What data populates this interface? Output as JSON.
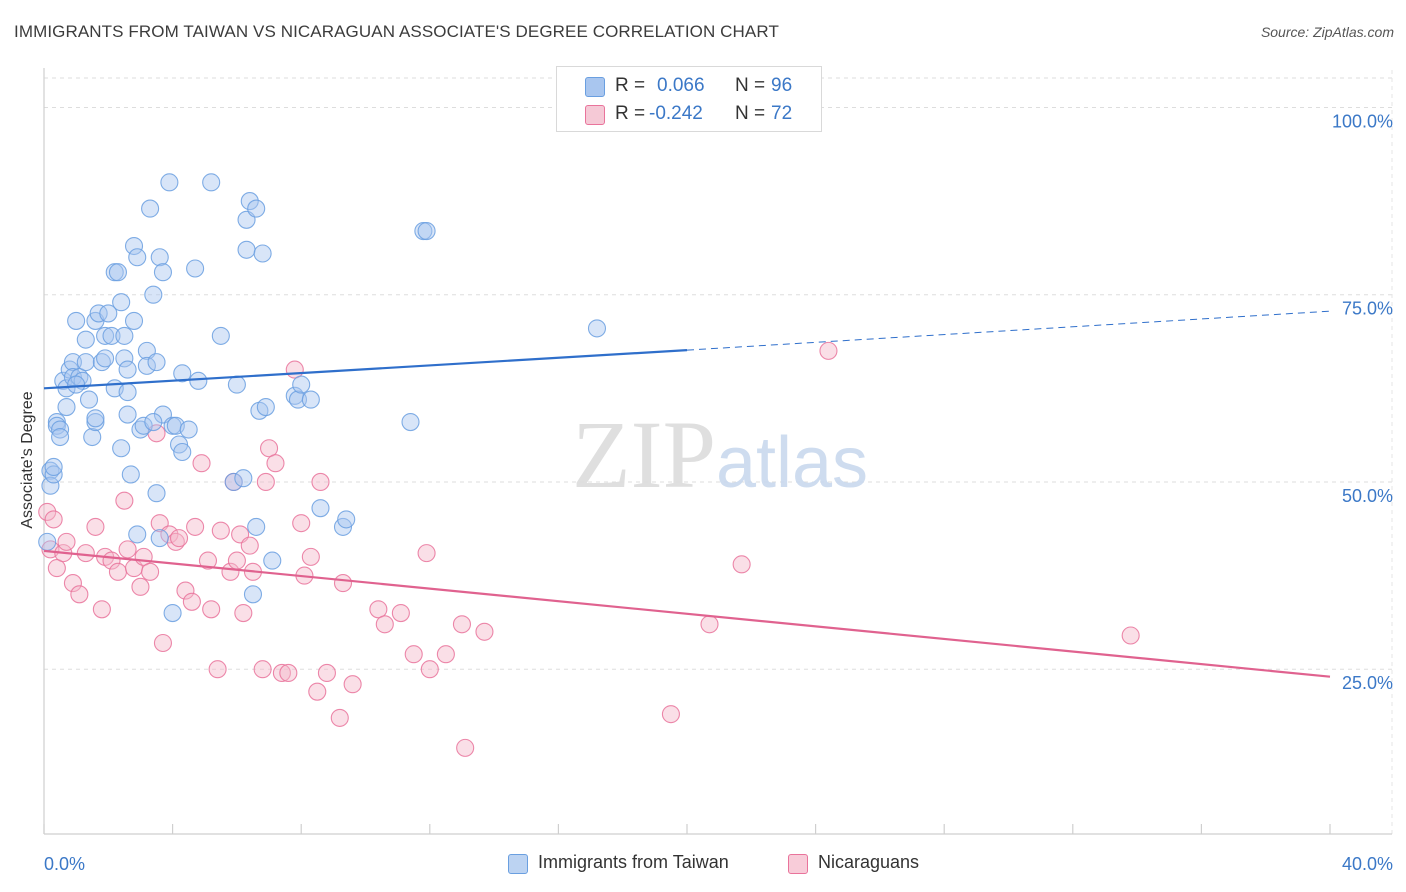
{
  "title": "IMMIGRANTS FROM TAIWAN VS NICARAGUAN ASSOCIATE'S DEGREE CORRELATION CHART",
  "source": "Source: ZipAtlas.com",
  "watermark": "ZIPatlas",
  "legend_stats": [
    {
      "r_label": "R =",
      "r_value": "0.066",
      "n_label": "N =",
      "n_value": "96",
      "color": "#a9c6ef"
    },
    {
      "r_label": "R =",
      "r_value": "-0.242",
      "n_label": "N =",
      "n_value": "72",
      "color": "#f5b7c9"
    }
  ],
  "legend_series": [
    {
      "label": "Immigrants from Taiwan",
      "color": "#a9c6ef"
    },
    {
      "label": "Nicaraguans",
      "color": "#f5b7c9"
    }
  ],
  "chart_data": {
    "type": "scatter",
    "title": "IMMIGRANTS FROM TAIWAN VS NICARAGUAN ASSOCIATE'S DEGREE CORRELATION CHART",
    "xlabel": "",
    "ylabel": "Associate's Degree",
    "xlim": [
      0,
      40
    ],
    "ylim": [
      3,
      105
    ],
    "x_tick_labels": [
      "0.0%",
      "40.0%"
    ],
    "y_ticks": [
      25,
      50,
      75,
      100
    ],
    "y_tick_labels": [
      "25.0%",
      "50.0%",
      "75.0%",
      "100.0%"
    ],
    "grid": true,
    "legend_position": "top-center",
    "series": [
      {
        "name": "Immigrants from Taiwan",
        "color": "#6a9fe0",
        "fill": "#a9c6ef",
        "r": 0.066,
        "n": 96,
        "trend": {
          "x": [
            0,
            20
          ],
          "y": [
            62.5,
            67.6
          ],
          "dashed_to": [
            40,
            72.8
          ]
        },
        "points": [
          [
            0.2,
            51.5
          ],
          [
            0.2,
            49.5
          ],
          [
            0.3,
            51.0
          ],
          [
            0.4,
            58.0
          ],
          [
            0.4,
            57.5
          ],
          [
            0.5,
            57.0
          ],
          [
            0.6,
            63.5
          ],
          [
            0.7,
            60.0
          ],
          [
            0.7,
            62.5
          ],
          [
            0.8,
            65.0
          ],
          [
            0.9,
            66.0
          ],
          [
            0.9,
            64.0
          ],
          [
            1.0,
            71.5
          ],
          [
            1.1,
            64.0
          ],
          [
            1.2,
            63.5
          ],
          [
            1.3,
            69.0
          ],
          [
            1.3,
            66.0
          ],
          [
            1.4,
            61.0
          ],
          [
            1.5,
            56.0
          ],
          [
            1.6,
            58.0
          ],
          [
            1.6,
            71.5
          ],
          [
            1.7,
            72.5
          ],
          [
            1.8,
            66.0
          ],
          [
            1.9,
            69.5
          ],
          [
            1.9,
            66.5
          ],
          [
            2.0,
            72.5
          ],
          [
            2.1,
            69.5
          ],
          [
            2.2,
            62.5
          ],
          [
            2.2,
            78.0
          ],
          [
            2.3,
            78.0
          ],
          [
            2.4,
            54.5
          ],
          [
            2.4,
            74.0
          ],
          [
            2.5,
            66.5
          ],
          [
            2.5,
            69.5
          ],
          [
            2.6,
            59.0
          ],
          [
            2.6,
            62.0
          ],
          [
            2.7,
            51.0
          ],
          [
            2.8,
            71.5
          ],
          [
            2.8,
            81.5
          ],
          [
            2.9,
            80.0
          ],
          [
            2.9,
            43.0
          ],
          [
            3.0,
            57.0
          ],
          [
            3.1,
            57.5
          ],
          [
            3.2,
            67.5
          ],
          [
            3.2,
            65.5
          ],
          [
            3.3,
            86.5
          ],
          [
            3.4,
            75.0
          ],
          [
            3.5,
            48.5
          ],
          [
            3.5,
            66.0
          ],
          [
            3.6,
            80.0
          ],
          [
            3.6,
            42.5
          ],
          [
            3.7,
            78.0
          ],
          [
            3.7,
            59.0
          ],
          [
            3.9,
            90.0
          ],
          [
            4.0,
            57.5
          ],
          [
            4.1,
            57.5
          ],
          [
            4.2,
            55.0
          ],
          [
            4.3,
            64.5
          ],
          [
            4.3,
            54.0
          ],
          [
            4.5,
            57.0
          ],
          [
            4.7,
            78.5
          ],
          [
            4.8,
            63.5
          ],
          [
            4.0,
            32.5
          ],
          [
            5.2,
            90.0
          ],
          [
            5.5,
            69.5
          ],
          [
            5.9,
            50.0
          ],
          [
            6.0,
            63.0
          ],
          [
            6.2,
            50.5
          ],
          [
            6.3,
            81.0
          ],
          [
            6.3,
            85.0
          ],
          [
            6.4,
            87.5
          ],
          [
            6.5,
            35.0
          ],
          [
            6.6,
            44.0
          ],
          [
            6.6,
            86.5
          ],
          [
            6.7,
            59.5
          ],
          [
            6.8,
            80.5
          ],
          [
            6.9,
            60.0
          ],
          [
            7.1,
            39.5
          ],
          [
            7.8,
            61.5
          ],
          [
            7.9,
            61.0
          ],
          [
            8.0,
            63.0
          ],
          [
            8.3,
            61.0
          ],
          [
            8.6,
            46.5
          ],
          [
            9.3,
            44.0
          ],
          [
            9.4,
            45.0
          ],
          [
            11.8,
            83.5
          ],
          [
            11.9,
            83.5
          ],
          [
            11.4,
            58.0
          ],
          [
            17.2,
            70.5
          ],
          [
            0.1,
            42.0
          ],
          [
            1.6,
            58.5
          ],
          [
            3.4,
            58.0
          ],
          [
            2.6,
            65.0
          ],
          [
            1.0,
            63.0
          ],
          [
            0.5,
            56.0
          ],
          [
            0.3,
            52.0
          ]
        ]
      },
      {
        "name": "Nicaraguans",
        "color": "#e9739b",
        "fill": "#f5b7c9",
        "r": -0.242,
        "n": 72,
        "trend": {
          "x": [
            0,
            40
          ],
          "y": [
            40.8,
            24.0
          ]
        },
        "points": [
          [
            0.1,
            46.0
          ],
          [
            0.2,
            41.0
          ],
          [
            0.3,
            45.0
          ],
          [
            0.4,
            38.5
          ],
          [
            0.6,
            40.5
          ],
          [
            0.7,
            42.0
          ],
          [
            0.9,
            36.5
          ],
          [
            1.1,
            35.0
          ],
          [
            1.3,
            40.5
          ],
          [
            1.6,
            44.0
          ],
          [
            1.8,
            33.0
          ],
          [
            1.9,
            40.0
          ],
          [
            2.1,
            39.5
          ],
          [
            2.3,
            38.0
          ],
          [
            2.5,
            47.5
          ],
          [
            2.6,
            41.0
          ],
          [
            2.8,
            38.5
          ],
          [
            3.0,
            36.0
          ],
          [
            3.1,
            40.0
          ],
          [
            3.3,
            38.0
          ],
          [
            3.5,
            56.5
          ],
          [
            3.6,
            44.5
          ],
          [
            3.7,
            28.5
          ],
          [
            3.9,
            43.0
          ],
          [
            4.1,
            42.0
          ],
          [
            4.2,
            42.5
          ],
          [
            4.4,
            35.5
          ],
          [
            4.6,
            34.0
          ],
          [
            4.7,
            44.0
          ],
          [
            4.9,
            52.5
          ],
          [
            5.1,
            39.5
          ],
          [
            5.2,
            33.0
          ],
          [
            5.4,
            25.0
          ],
          [
            5.5,
            43.5
          ],
          [
            5.8,
            38.0
          ],
          [
            5.9,
            50.0
          ],
          [
            6.0,
            39.5
          ],
          [
            6.1,
            43.0
          ],
          [
            6.2,
            32.5
          ],
          [
            6.4,
            41.5
          ],
          [
            6.5,
            38.0
          ],
          [
            6.8,
            25.0
          ],
          [
            6.9,
            50.0
          ],
          [
            7.0,
            54.5
          ],
          [
            7.2,
            52.5
          ],
          [
            7.4,
            24.5
          ],
          [
            7.6,
            24.5
          ],
          [
            7.8,
            65.0
          ],
          [
            8.0,
            44.5
          ],
          [
            8.1,
            37.5
          ],
          [
            8.3,
            40.0
          ],
          [
            8.5,
            22.0
          ],
          [
            8.6,
            50.0
          ],
          [
            8.8,
            24.5
          ],
          [
            9.2,
            18.5
          ],
          [
            9.3,
            36.5
          ],
          [
            9.6,
            23.0
          ],
          [
            10.4,
            33.0
          ],
          [
            10.6,
            31.0
          ],
          [
            11.1,
            32.5
          ],
          [
            11.5,
            27.0
          ],
          [
            11.9,
            40.5
          ],
          [
            12.0,
            25.0
          ],
          [
            12.5,
            27.0
          ],
          [
            13.0,
            31.0
          ],
          [
            13.1,
            14.5
          ],
          [
            13.7,
            30.0
          ],
          [
            19.5,
            19.0
          ],
          [
            20.7,
            31.0
          ],
          [
            21.7,
            39.0
          ],
          [
            24.4,
            67.5
          ],
          [
            33.8,
            29.5
          ]
        ]
      }
    ]
  }
}
